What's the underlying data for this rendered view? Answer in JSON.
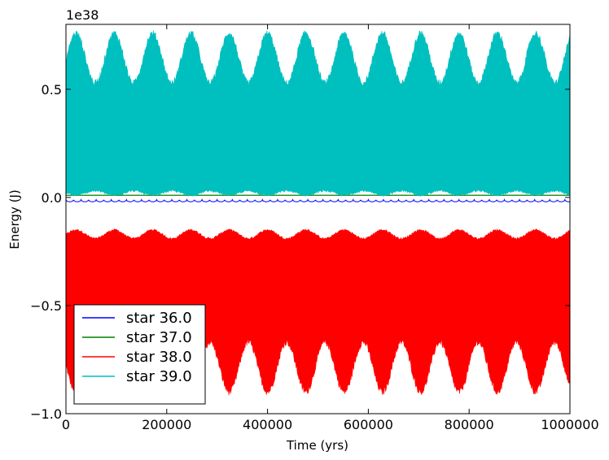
{
  "chart_data": {
    "type": "area",
    "title": "",
    "xlabel": "Time (yrs)",
    "ylabel": "Energy (J)",
    "y_offset_text": "1e38",
    "xlim": [
      0,
      1000000
    ],
    "ylim": [
      -1.0,
      0.8
    ],
    "x_ticks": [
      0,
      200000,
      400000,
      600000,
      800000,
      1000000
    ],
    "x_tick_labels": [
      "0",
      "200000",
      "400000",
      "600000",
      "800000",
      "1000000"
    ],
    "y_ticks": [
      -1.0,
      -0.5,
      0.0,
      0.5
    ],
    "y_tick_labels": [
      "−1.0",
      "−0.5",
      "0.0",
      "0.5"
    ],
    "grid": false,
    "legend_position": "lower-left",
    "oscillation_period_yrs": 76000,
    "series": [
      {
        "name": "star 36.0",
        "color": "#0000ff",
        "style": "scalloped-line",
        "level": -0.01,
        "scallop_period_yrs": 15000,
        "scallop_depth": 0.01
      },
      {
        "name": "star 37.0",
        "color": "#008000",
        "style": "line",
        "level": 0.01
      },
      {
        "name": "star 38.0",
        "color": "#ff0000",
        "style": "band",
        "upper_min": -0.19,
        "upper_max": -0.15,
        "lower_min": -0.9,
        "lower_max": -0.67
      },
      {
        "name": "star 39.0",
        "color": "#00bfbf",
        "style": "band",
        "lower_min": 0.01,
        "lower_max": 0.03,
        "upper_min": 0.53,
        "upper_max": 0.76
      }
    ]
  }
}
